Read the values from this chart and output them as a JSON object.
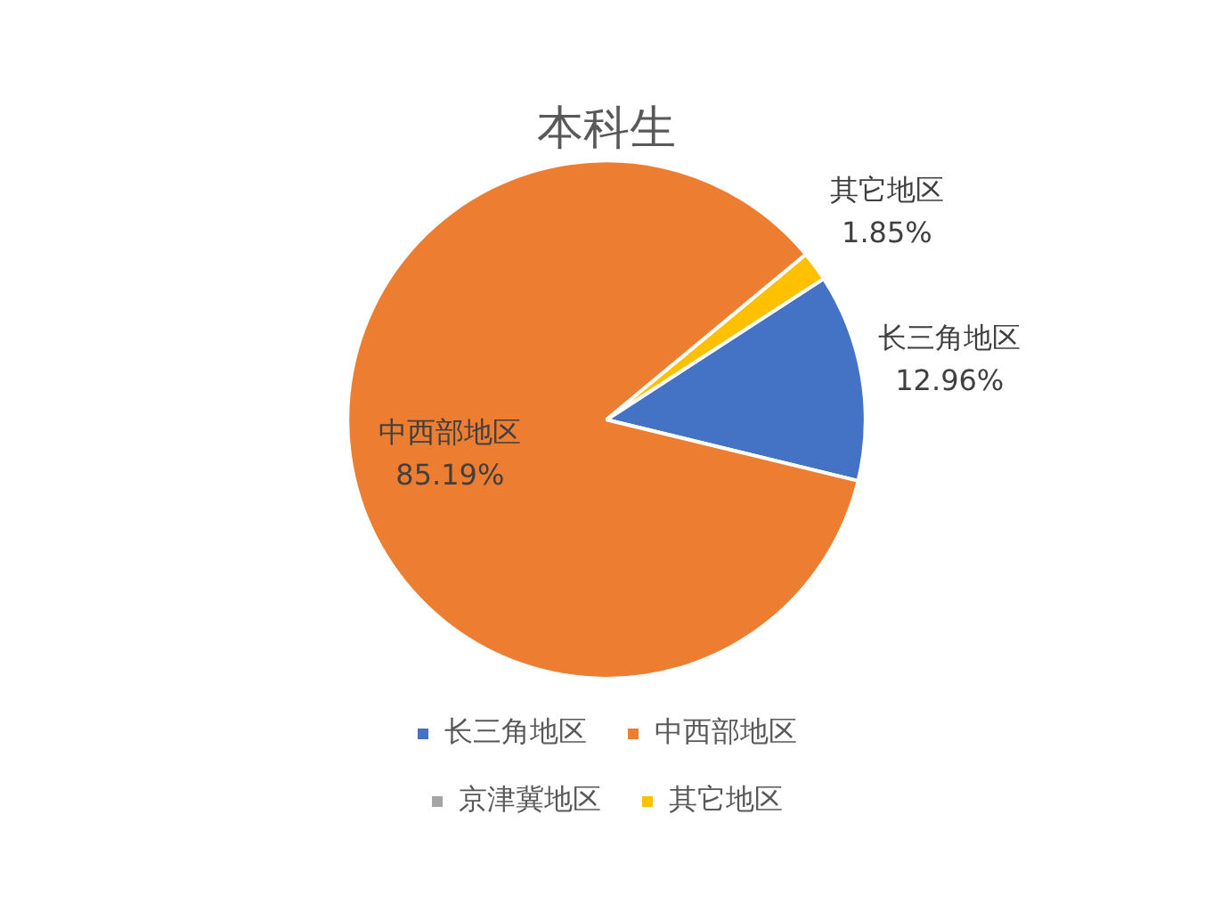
{
  "chart_data": {
    "type": "pie",
    "title": "本科生",
    "categories": [
      "长三角地区",
      "中西部地区",
      "京津冀地区",
      "其它地区"
    ],
    "values": [
      12.96,
      85.19,
      0,
      1.85
    ],
    "colors": [
      "#4472c4",
      "#ed7d31",
      "#a5a5a5",
      "#ffc000"
    ],
    "value_labels": [
      "12.96%",
      "85.19%",
      null,
      "1.85%"
    ],
    "legend": "bottom"
  }
}
